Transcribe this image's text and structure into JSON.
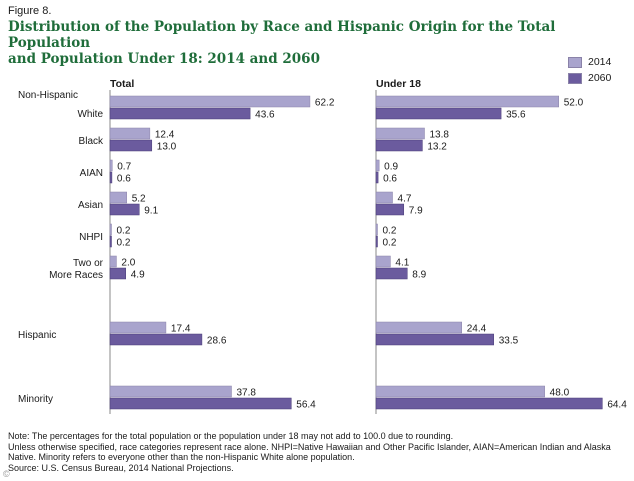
{
  "figure": {
    "label": "Figure 8.",
    "title_line1": "Distribution of the Population by Race and Hispanic Origin for the Total Population",
    "title_line2": "and Population Under 18: 2014 and 2060"
  },
  "legend": [
    {
      "label": "2014",
      "color": "#a9a4cd"
    },
    {
      "label": "2060",
      "color": "#6b5b9e"
    }
  ],
  "chart_data": [
    {
      "type": "bar",
      "orientation": "horizontal",
      "title": "Total",
      "categories": [
        "Non-Hispanic White",
        "Black",
        "AIAN",
        "Asian",
        "NHPI",
        "Two or More Races",
        "Hispanic",
        "Minority"
      ],
      "series": [
        {
          "name": "2014",
          "values": [
            62.2,
            12.4,
            0.7,
            5.2,
            0.2,
            2.0,
            17.4,
            37.8
          ]
        },
        {
          "name": "2060",
          "values": [
            43.6,
            13.0,
            0.6,
            9.1,
            0.2,
            4.9,
            28.6,
            56.4
          ]
        }
      ],
      "xlim": [
        0,
        70
      ],
      "grid": false,
      "legend_position": "top-right"
    },
    {
      "type": "bar",
      "orientation": "horizontal",
      "title": "Under 18",
      "categories": [
        "Non-Hispanic White",
        "Black",
        "AIAN",
        "Asian",
        "NHPI",
        "Two or More Races",
        "Hispanic",
        "Minority"
      ],
      "series": [
        {
          "name": "2014",
          "values": [
            52.0,
            13.8,
            0.9,
            4.7,
            0.2,
            4.1,
            24.4,
            48.0
          ]
        },
        {
          "name": "2060",
          "values": [
            35.6,
            13.2,
            0.6,
            7.9,
            0.2,
            8.9,
            33.5,
            64.4
          ]
        }
      ],
      "xlim": [
        0,
        70
      ],
      "grid": false,
      "legend_position": "top-right"
    }
  ],
  "category_labels": [
    [
      "Non-Hispanic",
      "White"
    ],
    [
      "Black"
    ],
    [
      "AIAN"
    ],
    [
      "Asian"
    ],
    [
      "NHPI"
    ],
    [
      "Two or",
      "More Races"
    ],
    [
      "Hispanic"
    ],
    [
      "Minority"
    ]
  ],
  "notes": [
    "Note: The percentages for the total population or the population under 18 may not add to 100.0 due to rounding.",
    "Unless otherwise specified, race categories represent race alone. NHPI=Native Hawaiian and Other Pacific Islander, AIAN=American Indian and Alaska Native. Minority refers to everyone other than the non-Hispanic White alone population.",
    "Source: U.S. Census Bureau, 2014 National Projections."
  ],
  "credit": "©"
}
